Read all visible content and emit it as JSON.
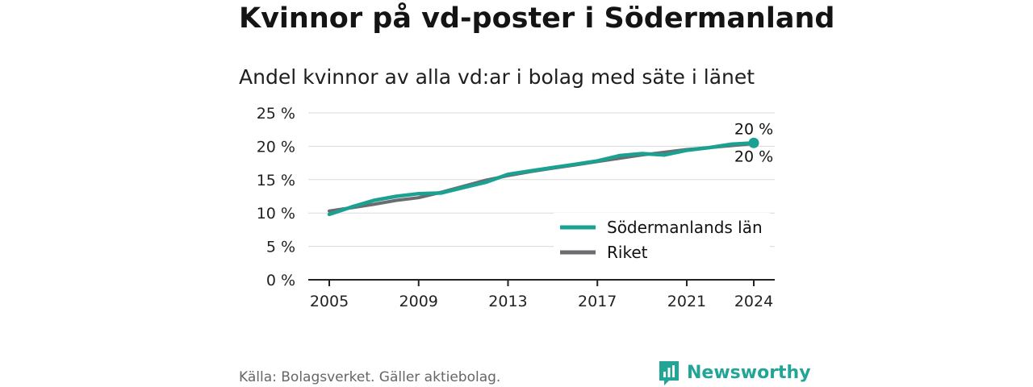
{
  "title": "Kvinnor på vd-poster i Södermanland",
  "subtitle": "Andel kvinnor av alla vd:ar i bolag med säte i länet",
  "footer": {
    "source": "Källa: Bolagsverket. Gäller aktiebolag.",
    "brand": "Newsworthy",
    "brand_color": "#22a597",
    "brand_icon": "newsworthy-chart-logo-icon"
  },
  "chart_data": {
    "type": "line",
    "x_tick_labels": [
      "2005",
      "2009",
      "2013",
      "2017",
      "2021",
      "2024"
    ],
    "y_tick_labels": [
      "0 %",
      "5 %",
      "10 %",
      "15 %",
      "20 %",
      "25 %"
    ],
    "xlim": [
      2005,
      2024
    ],
    "ylim": [
      0,
      25
    ],
    "grid": "horizontal",
    "legend_position": "bottom-right",
    "end_labels": [
      "20 %",
      "20 %"
    ],
    "series": [
      {
        "name": "Södermanlands län",
        "color": "#1aa191",
        "x": [
          2005,
          2006,
          2007,
          2008,
          2009,
          2010,
          2011,
          2012,
          2013,
          2014,
          2015,
          2016,
          2017,
          2018,
          2019,
          2020,
          2021,
          2022,
          2023,
          2024
        ],
        "values": [
          9.8,
          10.9,
          11.9,
          12.5,
          12.9,
          13.0,
          13.8,
          14.6,
          15.8,
          16.3,
          16.8,
          17.3,
          17.8,
          18.6,
          18.9,
          18.7,
          19.4,
          19.8,
          20.3,
          20.5
        ]
      },
      {
        "name": "Riket",
        "color": "#6b6b70",
        "x": [
          2005,
          2006,
          2007,
          2008,
          2009,
          2010,
          2011,
          2012,
          2013,
          2014,
          2015,
          2016,
          2017,
          2018,
          2019,
          2020,
          2021,
          2022,
          2023,
          2024
        ],
        "values": [
          10.3,
          10.8,
          11.3,
          11.9,
          12.3,
          13.1,
          14.0,
          14.9,
          15.6,
          16.2,
          16.7,
          17.2,
          17.7,
          18.2,
          18.7,
          19.1,
          19.5,
          19.8,
          20.1,
          20.4
        ]
      }
    ]
  }
}
